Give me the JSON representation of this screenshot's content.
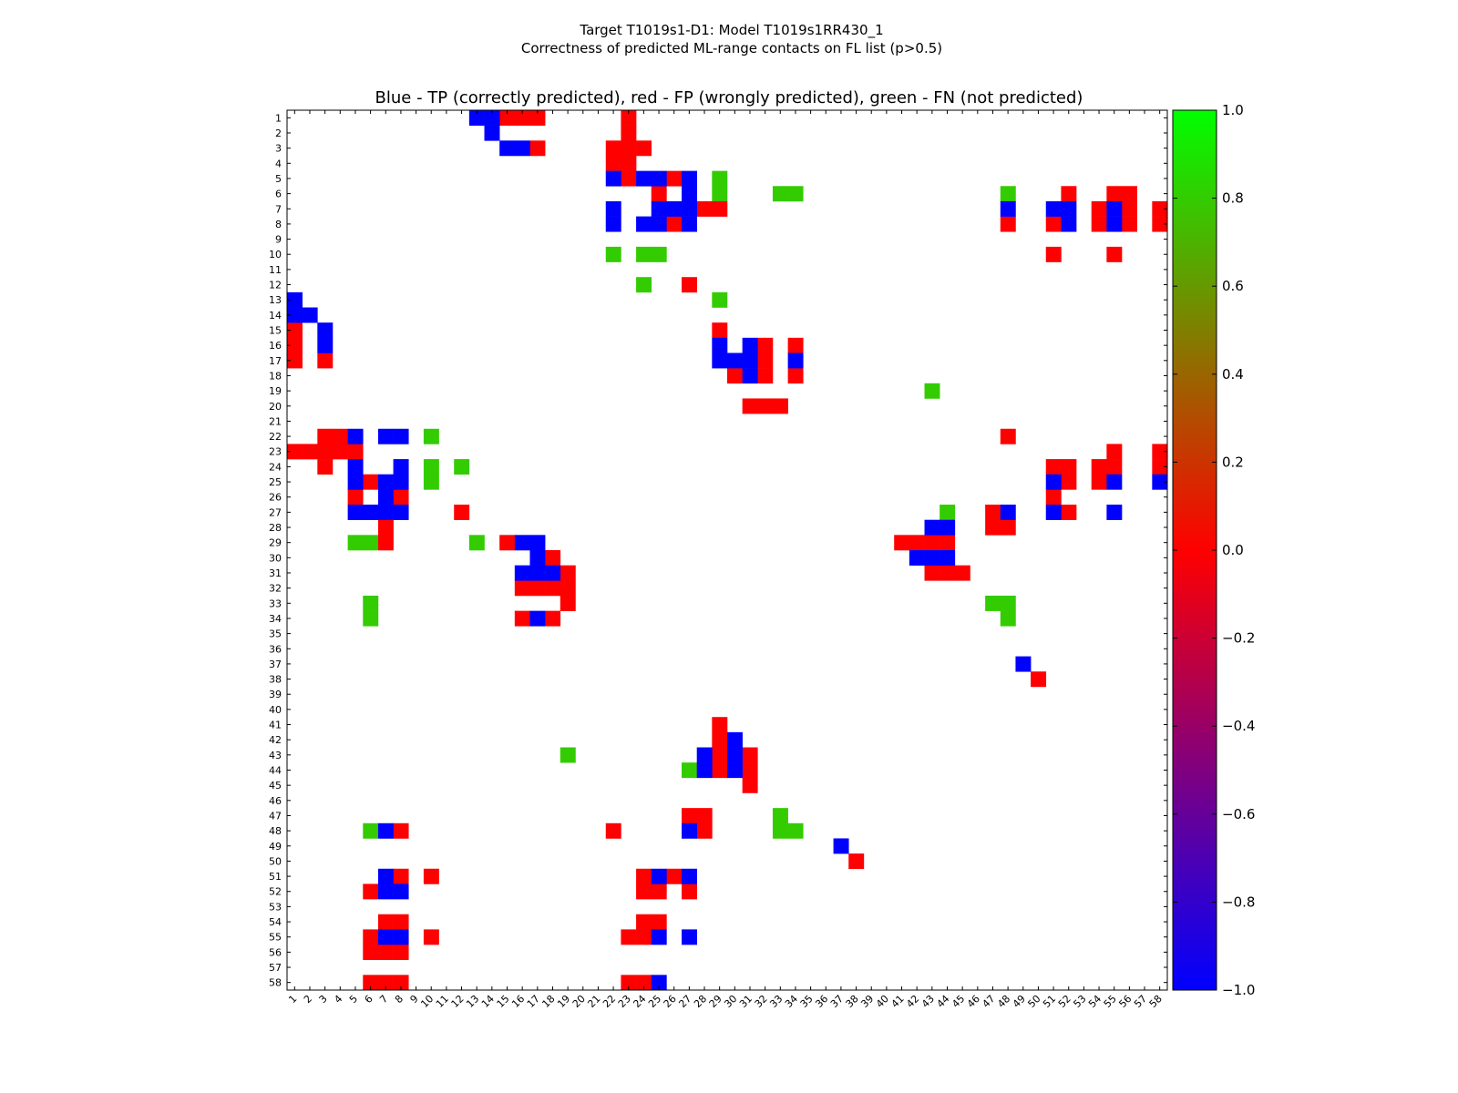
{
  "figure": {
    "title_line1": "Target T1019s1-D1: Model T1019s1RR430_1",
    "title_line2": "Correctness of predicted ML-range contacts on FL list (p>0.5)"
  },
  "chart_data": {
    "type": "heatmap",
    "title": "Blue - TP (correctly predicted), red - FP (wrongly predicted), green - FN (not predicted)",
    "xlabel": "",
    "ylabel": "",
    "n": 58,
    "x_ticks": [
      "1",
      "2",
      "3",
      "4",
      "5",
      "6",
      "7",
      "8",
      "9",
      "10",
      "11",
      "12",
      "13",
      "14",
      "15",
      "16",
      "17",
      "18",
      "19",
      "20",
      "21",
      "22",
      "23",
      "24",
      "25",
      "26",
      "27",
      "28",
      "29",
      "30",
      "31",
      "32",
      "33",
      "34",
      "35",
      "36",
      "37",
      "38",
      "39",
      "40",
      "41",
      "42",
      "43",
      "44",
      "45",
      "46",
      "47",
      "48",
      "49",
      "50",
      "51",
      "52",
      "53",
      "54",
      "55",
      "56",
      "57",
      "58"
    ],
    "y_ticks": [
      "1",
      "2",
      "3",
      "4",
      "5",
      "6",
      "7",
      "8",
      "9",
      "10",
      "11",
      "12",
      "13",
      "14",
      "15",
      "16",
      "17",
      "18",
      "19",
      "20",
      "21",
      "22",
      "23",
      "24",
      "25",
      "26",
      "27",
      "28",
      "29",
      "30",
      "31",
      "32",
      "33",
      "34",
      "35",
      "36",
      "37",
      "38",
      "39",
      "40",
      "41",
      "42",
      "43",
      "44",
      "45",
      "46",
      "47",
      "48",
      "49",
      "50",
      "51",
      "52",
      "53",
      "54",
      "55",
      "56",
      "57",
      "58"
    ],
    "colors": {
      "tp": "#0000ff",
      "fp": "#ff0000",
      "fn": "#33cc00"
    },
    "colorbar": {
      "range": [
        -1.0,
        1.0
      ],
      "ticks": [
        "1.0",
        "0.8",
        "0.6",
        "0.4",
        "0.2",
        "0.0",
        "−0.2",
        "−0.4",
        "−0.6",
        "−0.8",
        "−1.0"
      ],
      "stops": [
        "#00ff00",
        "#ff0000",
        "#0000ff"
      ]
    },
    "cells": {
      "tp": [
        [
          1,
          13
        ],
        [
          1,
          14
        ],
        [
          2,
          14
        ],
        [
          3,
          15
        ],
        [
          3,
          16
        ],
        [
          5,
          22
        ],
        [
          5,
          24
        ],
        [
          5,
          25
        ],
        [
          5,
          27
        ],
        [
          6,
          27
        ],
        [
          7,
          22
        ],
        [
          7,
          25
        ],
        [
          7,
          26
        ],
        [
          7,
          27
        ],
        [
          7,
          48
        ],
        [
          7,
          51
        ],
        [
          7,
          52
        ],
        [
          7,
          55
        ],
        [
          8,
          22
        ],
        [
          8,
          24
        ],
        [
          8,
          25
        ],
        [
          8,
          27
        ],
        [
          8,
          52
        ],
        [
          8,
          55
        ],
        [
          13,
          1
        ],
        [
          14,
          1
        ],
        [
          14,
          2
        ],
        [
          15,
          3
        ],
        [
          16,
          3
        ],
        [
          16,
          29
        ],
        [
          16,
          31
        ],
        [
          17,
          29
        ],
        [
          17,
          30
        ],
        [
          17,
          31
        ],
        [
          17,
          34
        ],
        [
          18,
          31
        ],
        [
          22,
          5
        ],
        [
          22,
          7
        ],
        [
          22,
          8
        ],
        [
          24,
          5
        ],
        [
          24,
          8
        ],
        [
          25,
          5
        ],
        [
          25,
          7
        ],
        [
          25,
          8
        ],
        [
          25,
          51
        ],
        [
          25,
          55
        ],
        [
          25,
          58
        ],
        [
          26,
          7
        ],
        [
          27,
          5
        ],
        [
          27,
          6
        ],
        [
          27,
          7
        ],
        [
          27,
          8
        ],
        [
          27,
          48
        ],
        [
          27,
          51
        ],
        [
          27,
          55
        ],
        [
          28,
          43
        ],
        [
          28,
          44
        ],
        [
          29,
          16
        ],
        [
          29,
          17
        ],
        [
          30,
          17
        ],
        [
          30,
          42
        ],
        [
          30,
          43
        ],
        [
          30,
          44
        ],
        [
          31,
          16
        ],
        [
          31,
          17
        ],
        [
          31,
          18
        ],
        [
          34,
          17
        ],
        [
          37,
          49
        ],
        [
          42,
          30
        ],
        [
          43,
          28
        ],
        [
          43,
          30
        ],
        [
          44,
          28
        ],
        [
          44,
          30
        ],
        [
          48,
          7
        ],
        [
          48,
          27
        ],
        [
          49,
          37
        ],
        [
          51,
          7
        ],
        [
          51,
          25
        ],
        [
          51,
          27
        ],
        [
          52,
          7
        ],
        [
          52,
          8
        ],
        [
          55,
          7
        ],
        [
          55,
          8
        ],
        [
          55,
          25
        ],
        [
          55,
          27
        ],
        [
          58,
          25
        ]
      ],
      "fp": [
        [
          1,
          15
        ],
        [
          1,
          16
        ],
        [
          1,
          17
        ],
        [
          1,
          23
        ],
        [
          2,
          23
        ],
        [
          3,
          17
        ],
        [
          3,
          22
        ],
        [
          3,
          23
        ],
        [
          3,
          24
        ],
        [
          4,
          22
        ],
        [
          4,
          23
        ],
        [
          5,
          23
        ],
        [
          5,
          26
        ],
        [
          6,
          25
        ],
        [
          6,
          52
        ],
        [
          6,
          55
        ],
        [
          6,
          56
        ],
        [
          7,
          28
        ],
        [
          7,
          29
        ],
        [
          7,
          54
        ],
        [
          7,
          56
        ],
        [
          7,
          58
        ],
        [
          8,
          26
        ],
        [
          8,
          48
        ],
        [
          8,
          51
        ],
        [
          8,
          54
        ],
        [
          8,
          56
        ],
        [
          8,
          58
        ],
        [
          10,
          51
        ],
        [
          10,
          55
        ],
        [
          12,
          27
        ],
        [
          15,
          1
        ],
        [
          15,
          29
        ],
        [
          16,
          1
        ],
        [
          16,
          32
        ],
        [
          16,
          34
        ],
        [
          17,
          1
        ],
        [
          17,
          3
        ],
        [
          17,
          32
        ],
        [
          18,
          30
        ],
        [
          18,
          32
        ],
        [
          18,
          34
        ],
        [
          20,
          31
        ],
        [
          20,
          32
        ],
        [
          20,
          33
        ],
        [
          22,
          3
        ],
        [
          22,
          4
        ],
        [
          22,
          48
        ],
        [
          23,
          1
        ],
        [
          23,
          2
        ],
        [
          23,
          3
        ],
        [
          23,
          4
        ],
        [
          23,
          5
        ],
        [
          23,
          55
        ],
        [
          23,
          58
        ],
        [
          24,
          3
        ],
        [
          24,
          51
        ],
        [
          24,
          52
        ],
        [
          24,
          54
        ],
        [
          24,
          55
        ],
        [
          24,
          58
        ],
        [
          25,
          6
        ],
        [
          25,
          52
        ],
        [
          25,
          54
        ],
        [
          26,
          5
        ],
        [
          26,
          8
        ],
        [
          26,
          51
        ],
        [
          27,
          12
        ],
        [
          27,
          47
        ],
        [
          27,
          52
        ],
        [
          28,
          7
        ],
        [
          28,
          47
        ],
        [
          28,
          48
        ],
        [
          29,
          7
        ],
        [
          29,
          15
        ],
        [
          29,
          41
        ],
        [
          29,
          42
        ],
        [
          29,
          43
        ],
        [
          29,
          44
        ],
        [
          30,
          18
        ],
        [
          31,
          19
        ],
        [
          31,
          43
        ],
        [
          31,
          44
        ],
        [
          31,
          45
        ],
        [
          32,
          16
        ],
        [
          32,
          17
        ],
        [
          32,
          18
        ],
        [
          32,
          19
        ],
        [
          33,
          19
        ],
        [
          34,
          16
        ],
        [
          34,
          18
        ],
        [
          38,
          50
        ],
        [
          41,
          29
        ],
        [
          42,
          29
        ],
        [
          43,
          29
        ],
        [
          43,
          31
        ],
        [
          44,
          29
        ],
        [
          44,
          31
        ],
        [
          45,
          31
        ],
        [
          47,
          27
        ],
        [
          47,
          28
        ],
        [
          48,
          8
        ],
        [
          48,
          22
        ],
        [
          48,
          28
        ],
        [
          50,
          38
        ],
        [
          51,
          8
        ],
        [
          51,
          10
        ],
        [
          51,
          24
        ],
        [
          51,
          26
        ],
        [
          52,
          6
        ],
        [
          52,
          24
        ],
        [
          52,
          25
        ],
        [
          52,
          27
        ],
        [
          54,
          7
        ],
        [
          54,
          8
        ],
        [
          54,
          24
        ],
        [
          54,
          25
        ],
        [
          55,
          6
        ],
        [
          55,
          10
        ],
        [
          55,
          23
        ],
        [
          55,
          24
        ],
        [
          56,
          6
        ],
        [
          56,
          7
        ],
        [
          56,
          8
        ],
        [
          58,
          6
        ],
        [
          58,
          7
        ],
        [
          58,
          8
        ],
        [
          58,
          23
        ],
        [
          58,
          24
        ]
      ],
      "fn": [
        [
          5,
          29
        ],
        [
          6,
          29
        ],
        [
          6,
          33
        ],
        [
          6,
          34
        ],
        [
          6,
          48
        ],
        [
          10,
          22
        ],
        [
          10,
          24
        ],
        [
          10,
          25
        ],
        [
          12,
          24
        ],
        [
          13,
          29
        ],
        [
          19,
          43
        ],
        [
          22,
          10
        ],
        [
          24,
          10
        ],
        [
          24,
          12
        ],
        [
          25,
          10
        ],
        [
          27,
          44
        ],
        [
          29,
          5
        ],
        [
          29,
          6
        ],
        [
          29,
          13
        ],
        [
          33,
          6
        ],
        [
          33,
          47
        ],
        [
          33,
          48
        ],
        [
          34,
          6
        ],
        [
          34,
          48
        ],
        [
          43,
          19
        ],
        [
          44,
          27
        ],
        [
          47,
          33
        ],
        [
          48,
          6
        ],
        [
          48,
          33
        ],
        [
          48,
          34
        ]
      ]
    }
  }
}
